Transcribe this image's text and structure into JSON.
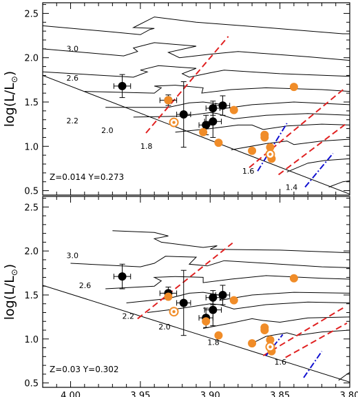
{
  "chart_data": [
    {
      "type": "scatter",
      "note": "Z=0.014  Y=0.273",
      "ylabel": "log(L/L",
      "ylabel_sun": "⊙",
      "ylabel_close": ")",
      "xlim": [
        4.02,
        3.8
      ],
      "ylim": [
        0.45,
        2.62
      ],
      "xticks": [
        4.0,
        3.95,
        3.9,
        3.85,
        3.8
      ],
      "xtick_labels": [
        "4.00",
        "3.95",
        "3.90",
        "3.85",
        "3.80"
      ],
      "yticks": [
        0.5,
        1.0,
        1.5,
        2.0,
        2.5
      ],
      "ytick_labels": [
        "0.5",
        "1.0",
        "1.5",
        "2.0",
        "2.5"
      ],
      "show_xtick_labels": false,
      "colors": {
        "black": "#000000",
        "orange": "#f08c28",
        "red": "#e02020",
        "blue": "#1010d0",
        "track": "#000000"
      },
      "series": [
        {
          "marker": "filled-circle-errorbar",
          "color": "black",
          "points": [
            {
              "x": 3.963,
              "y": 1.68,
              "xerr": 0.006,
              "yerr": 0.13
            },
            {
              "x": 3.93,
              "y": 1.52,
              "xerr": 0.006,
              "yerr": 0.06
            },
            {
              "x": 3.919,
              "y": 1.36,
              "xerr": 0.005,
              "yerr": 0.37
            },
            {
              "x": 3.903,
              "y": 1.24,
              "xerr": 0.005,
              "yerr": 0.11
            },
            {
              "x": 3.898,
              "y": 1.28,
              "xerr": 0.006,
              "yerr": 0.18
            },
            {
              "x": 3.898,
              "y": 1.43,
              "xerr": 0.005,
              "yerr": 0.08
            },
            {
              "x": 3.891,
              "y": 1.46,
              "xerr": 0.005,
              "yerr": 0.11
            }
          ]
        },
        {
          "marker": "filled-circle",
          "color": "orange",
          "points": [
            {
              "x": 3.93,
              "y": 1.52
            },
            {
              "x": 3.905,
              "y": 1.16
            },
            {
              "x": 3.883,
              "y": 1.41
            },
            {
              "x": 3.894,
              "y": 1.04
            },
            {
              "x": 3.87,
              "y": 0.95
            },
            {
              "x": 3.861,
              "y": 1.13
            },
            {
              "x": 3.861,
              "y": 1.1
            },
            {
              "x": 3.857,
              "y": 0.99
            },
            {
              "x": 3.856,
              "y": 0.86
            },
            {
              "x": 3.84,
              "y": 1.67
            }
          ]
        },
        {
          "marker": "ring",
          "color": "orange",
          "points": [
            {
              "x": 3.926,
              "y": 1.27
            },
            {
              "x": 3.857,
              "y": 0.91
            }
          ]
        }
      ],
      "zams": [
        [
          4.02,
          1.8
        ],
        [
          3.8,
          0.46
        ]
      ],
      "mass_labels": [
        {
          "text": "3.0",
          "x": 4.003,
          "y": 2.07
        },
        {
          "text": "2.6",
          "x": 4.003,
          "y": 1.74
        },
        {
          "text": "2.2",
          "x": 4.003,
          "y": 1.26
        },
        {
          "text": "2.0",
          "x": 3.978,
          "y": 1.15
        },
        {
          "text": "1.8",
          "x": 3.95,
          "y": 0.97
        },
        {
          "text": "1.6",
          "x": 3.877,
          "y": 0.69
        },
        {
          "text": "1.4",
          "x": 3.846,
          "y": 0.51
        }
      ],
      "tracks": [
        [
          [
            4.02,
            2.36
          ],
          [
            3.97,
            2.29
          ],
          [
            3.95,
            2.26
          ],
          [
            3.943,
            2.32
          ],
          [
            3.94,
            2.33
          ],
          [
            3.955,
            2.34
          ],
          [
            3.94,
            2.46
          ],
          [
            3.91,
            2.4
          ],
          [
            3.86,
            2.34
          ],
          [
            3.805,
            2.27
          ],
          [
            3.8,
            2.27
          ]
        ],
        [
          [
            4.02,
            2.1
          ],
          [
            3.962,
            2.02
          ],
          [
            3.952,
            2.07
          ],
          [
            3.955,
            2.11
          ],
          [
            3.94,
            2.17
          ],
          [
            3.91,
            2.13
          ],
          [
            3.93,
            2.06
          ],
          [
            3.922,
            2.0
          ],
          [
            3.9,
            2.04
          ],
          [
            3.88,
            2.07
          ],
          [
            3.83,
            2.01
          ],
          [
            3.8,
            1.97
          ]
        ],
        [
          [
            4.02,
            1.84
          ],
          [
            3.955,
            1.78
          ],
          [
            3.945,
            1.84
          ],
          [
            3.95,
            1.86
          ],
          [
            3.937,
            1.91
          ],
          [
            3.91,
            1.88
          ],
          [
            3.92,
            1.82
          ],
          [
            3.915,
            1.78
          ],
          [
            3.9,
            1.83
          ],
          [
            3.89,
            1.86
          ],
          [
            3.85,
            1.82
          ],
          [
            3.8,
            1.79
          ]
        ],
        [
          [
            3.99,
            1.62
          ],
          [
            3.94,
            1.6
          ],
          [
            3.935,
            1.66
          ],
          [
            3.94,
            1.68
          ],
          [
            3.925,
            1.69
          ],
          [
            3.905,
            1.66
          ],
          [
            3.906,
            1.6
          ],
          [
            3.885,
            1.64
          ],
          [
            3.86,
            1.66
          ],
          [
            3.82,
            1.64
          ],
          [
            3.8,
            1.62
          ]
        ],
        [
          [
            3.975,
            1.44
          ],
          [
            3.93,
            1.44
          ],
          [
            3.915,
            1.49
          ],
          [
            3.905,
            1.5
          ],
          [
            3.89,
            1.47
          ],
          [
            3.893,
            1.42
          ],
          [
            3.87,
            1.47
          ],
          [
            3.84,
            1.5
          ],
          [
            3.8,
            1.47
          ]
        ],
        [
          [
            3.955,
            1.33
          ],
          [
            3.92,
            1.34
          ],
          [
            3.9,
            1.38
          ],
          [
            3.895,
            1.37
          ],
          [
            3.883,
            1.31
          ],
          [
            3.86,
            1.35
          ],
          [
            3.83,
            1.37
          ],
          [
            3.8,
            1.35
          ]
        ],
        [
          [
            3.925,
            1.16
          ],
          [
            3.9,
            1.2
          ],
          [
            3.88,
            1.24
          ],
          [
            3.87,
            1.24
          ],
          [
            3.862,
            1.19
          ],
          [
            3.845,
            1.23
          ],
          [
            3.82,
            1.25
          ],
          [
            3.8,
            1.24
          ]
        ],
        [
          [
            3.885,
            0.96
          ],
          [
            3.86,
            1.03
          ],
          [
            3.845,
            1.06
          ],
          [
            3.84,
            1.02
          ],
          [
            3.82,
            1.06
          ],
          [
            3.8,
            1.08
          ]
        ],
        [
          [
            3.845,
            0.71
          ],
          [
            3.83,
            0.81
          ],
          [
            3.818,
            0.84
          ],
          [
            3.8,
            0.86
          ]
        ],
        [
          [
            3.815,
            0.54
          ],
          [
            3.805,
            0.6
          ],
          [
            3.8,
            0.61
          ]
        ]
      ],
      "red_lines": [
        [
          [
            3.946,
            1.15
          ],
          [
            3.887,
            2.24
          ]
        ],
        [
          [
            3.872,
            0.76
          ],
          [
            3.804,
            1.65
          ]
        ],
        [
          [
            3.851,
            0.68
          ],
          [
            3.803,
            1.25
          ]
        ]
      ],
      "blue_lines": [
        [
          [
            3.866,
            0.72
          ],
          [
            3.845,
            1.26
          ]
        ],
        [
          [
            3.832,
            0.54
          ],
          [
            3.812,
            0.92
          ]
        ]
      ]
    },
    {
      "type": "scatter",
      "note": "Z=0.03  Y=0.302",
      "ylabel": "log(L/L",
      "ylabel_sun": "⊙",
      "ylabel_close": ")",
      "xlim": [
        4.02,
        3.8
      ],
      "ylim": [
        0.45,
        2.62
      ],
      "xticks": [
        4.0,
        3.95,
        3.9,
        3.85,
        3.8
      ],
      "xtick_labels": [
        "4.00",
        "3.95",
        "3.90",
        "3.85",
        "3.80"
      ],
      "yticks": [
        0.5,
        1.0,
        1.5,
        2.0,
        2.5
      ],
      "ytick_labels": [
        "0.5",
        "1.0",
        "1.5",
        "2.0",
        "2.5"
      ],
      "show_xtick_labels": true,
      "colors": {
        "black": "#000000",
        "orange": "#f08c28",
        "red": "#e02020",
        "blue": "#1010d0",
        "track": "#000000"
      },
      "series": [
        {
          "marker": "filled-circle-errorbar",
          "color": "black",
          "points": [
            {
              "x": 3.963,
              "y": 1.71,
              "xerr": 0.006,
              "yerr": 0.14
            },
            {
              "x": 3.93,
              "y": 1.52,
              "xerr": 0.006,
              "yerr": 0.07
            },
            {
              "x": 3.919,
              "y": 1.41,
              "xerr": 0.005,
              "yerr": 0.37
            },
            {
              "x": 3.903,
              "y": 1.24,
              "xerr": 0.005,
              "yerr": 0.11
            },
            {
              "x": 3.898,
              "y": 1.33,
              "xerr": 0.006,
              "yerr": 0.18
            },
            {
              "x": 3.898,
              "y": 1.47,
              "xerr": 0.005,
              "yerr": 0.08
            },
            {
              "x": 3.891,
              "y": 1.5,
              "xerr": 0.005,
              "yerr": 0.11
            }
          ]
        },
        {
          "marker": "filled-circle",
          "color": "orange",
          "points": [
            {
              "x": 3.93,
              "y": 1.48
            },
            {
              "x": 3.903,
              "y": 1.2
            },
            {
              "x": 3.883,
              "y": 1.44
            },
            {
              "x": 3.894,
              "y": 1.04
            },
            {
              "x": 3.87,
              "y": 0.95
            },
            {
              "x": 3.861,
              "y": 1.13
            },
            {
              "x": 3.861,
              "y": 1.1
            },
            {
              "x": 3.857,
              "y": 0.99
            },
            {
              "x": 3.856,
              "y": 0.86
            },
            {
              "x": 3.84,
              "y": 1.69
            }
          ]
        },
        {
          "marker": "ring",
          "color": "orange",
          "points": [
            {
              "x": 3.926,
              "y": 1.31
            },
            {
              "x": 3.857,
              "y": 0.91
            }
          ]
        }
      ],
      "zams": [
        [
          4.02,
          1.61
        ],
        [
          3.8,
          0.51
        ]
      ],
      "mass_labels": [
        {
          "text": "3.0",
          "x": 4.003,
          "y": 1.92
        },
        {
          "text": "2.6",
          "x": 3.994,
          "y": 1.58
        },
        {
          "text": "2.2",
          "x": 3.963,
          "y": 1.23
        },
        {
          "text": "2.0",
          "x": 3.937,
          "y": 1.11
        },
        {
          "text": "1.8",
          "x": 3.902,
          "y": 0.93
        },
        {
          "text": "1.6",
          "x": 3.854,
          "y": 0.71
        }
      ],
      "tracks": [
        [
          [
            3.97,
            2.23
          ],
          [
            3.94,
            2.21
          ],
          [
            3.93,
            2.17
          ],
          [
            3.94,
            2.14
          ],
          [
            3.935,
            2.1
          ],
          [
            3.905,
            2.04
          ],
          [
            3.895,
            2.06
          ],
          [
            3.9,
            2.02
          ],
          [
            3.85,
            2.01
          ],
          [
            3.8,
            1.98
          ]
        ],
        [
          [
            4.0,
            1.86
          ],
          [
            3.95,
            1.82
          ],
          [
            3.94,
            1.86
          ],
          [
            3.932,
            1.94
          ],
          [
            3.91,
            1.93
          ],
          [
            3.915,
            1.85
          ],
          [
            3.902,
            1.83
          ],
          [
            3.89,
            1.89
          ],
          [
            3.86,
            1.86
          ],
          [
            3.82,
            1.82
          ],
          [
            3.8,
            1.81
          ]
        ],
        [
          [
            3.975,
            1.57
          ],
          [
            3.94,
            1.6
          ],
          [
            3.935,
            1.66
          ],
          [
            3.94,
            1.7
          ],
          [
            3.925,
            1.71
          ],
          [
            3.905,
            1.7
          ],
          [
            3.905,
            1.64
          ],
          [
            3.885,
            1.68
          ],
          [
            3.86,
            1.72
          ],
          [
            3.82,
            1.69
          ],
          [
            3.8,
            1.68
          ]
        ],
        [
          [
            3.96,
            1.41
          ],
          [
            3.93,
            1.46
          ],
          [
            3.915,
            1.52
          ],
          [
            3.905,
            1.53
          ],
          [
            3.89,
            1.49
          ],
          [
            3.893,
            1.44
          ],
          [
            3.87,
            1.5
          ],
          [
            3.84,
            1.53
          ],
          [
            3.8,
            1.52
          ]
        ],
        [
          [
            3.945,
            1.3
          ],
          [
            3.92,
            1.35
          ],
          [
            3.9,
            1.4
          ],
          [
            3.893,
            1.39
          ],
          [
            3.883,
            1.34
          ],
          [
            3.86,
            1.39
          ],
          [
            3.83,
            1.42
          ],
          [
            3.8,
            1.41
          ]
        ],
        [
          [
            3.905,
            1.12
          ],
          [
            3.885,
            1.18
          ],
          [
            3.87,
            1.23
          ],
          [
            3.862,
            1.21
          ],
          [
            3.85,
            1.19
          ],
          [
            3.83,
            1.24
          ],
          [
            3.8,
            1.25
          ]
        ],
        [
          [
            3.87,
            0.95
          ],
          [
            3.86,
            1.03
          ],
          [
            3.845,
            1.07
          ],
          [
            3.838,
            1.04
          ],
          [
            3.82,
            1.08
          ],
          [
            3.8,
            1.1
          ]
        ],
        [
          [
            3.808,
            0.53
          ],
          [
            3.802,
            0.6
          ],
          [
            3.8,
            0.62
          ]
        ]
      ],
      "red_lines": [
        [
          [
            3.952,
            1.23
          ],
          [
            3.884,
            2.09
          ]
        ],
        [
          [
            3.862,
            0.81
          ],
          [
            3.804,
            1.36
          ]
        ],
        [
          [
            3.846,
            0.79
          ],
          [
            3.802,
            1.18
          ]
        ]
      ],
      "blue_lines": [
        [
          [
            3.86,
            0.81
          ],
          [
            3.848,
            1.05
          ]
        ],
        [
          [
            3.833,
            0.56
          ],
          [
            3.82,
            0.86
          ]
        ]
      ]
    }
  ]
}
